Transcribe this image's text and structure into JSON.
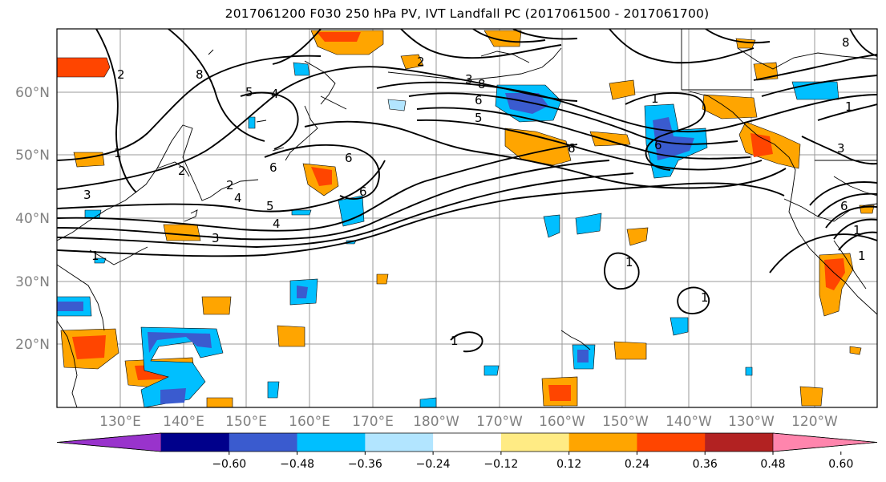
{
  "title": "2017061200 F030 250 hPa PV, IVT Landfall PC (2017061500 - 2017061700)",
  "map": {
    "lon_labels": [
      "130°E",
      "140°E",
      "150°E",
      "160°E",
      "170°E",
      "180°W",
      "170°W",
      "160°W",
      "150°W",
      "140°W",
      "130°W",
      "120°W"
    ],
    "lat_labels": [
      "60°N",
      "50°N",
      "40°N",
      "30°N",
      "20°N"
    ],
    "contour_labels": [
      "2",
      "8",
      "5",
      "4",
      "6",
      "6",
      "2",
      "3",
      "1",
      "2",
      "4",
      "5",
      "4",
      "3",
      "6",
      "8",
      "6",
      "3",
      "5",
      "2",
      "6",
      "1",
      "6",
      "8",
      "1",
      "1",
      "1",
      "1",
      "1",
      "3",
      "1",
      "1",
      "6"
    ]
  },
  "colorbar": {
    "colors": [
      "#9933cc",
      "#00008b",
      "#3a5bcf",
      "#00bfff",
      "#b2e5ff",
      "#ffffff",
      "#ffeb84",
      "#ffa500",
      "#ff4500",
      "#b22222",
      "#ff85ad"
    ],
    "tick_labels": [
      "−0.60",
      "−0.48",
      "−0.36",
      "−0.24",
      "−0.12",
      "0.12",
      "0.24",
      "0.36",
      "0.48",
      "0.60"
    ]
  }
}
